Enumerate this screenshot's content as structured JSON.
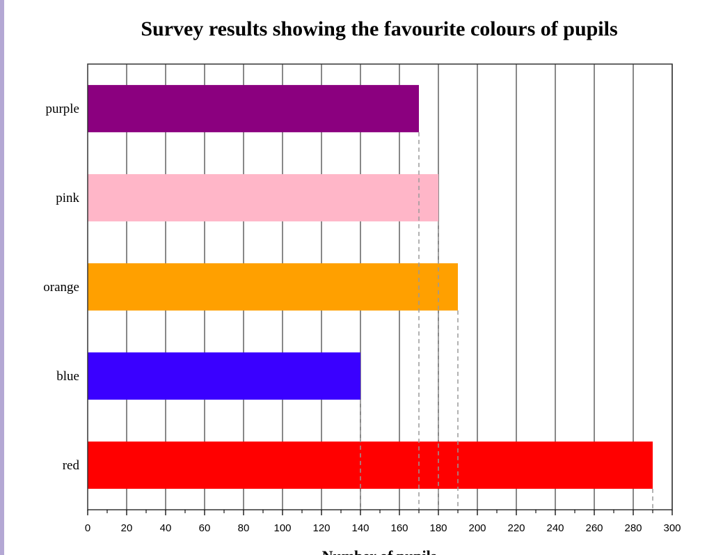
{
  "chart_data": {
    "type": "bar",
    "orientation": "horizontal",
    "title": "Survey results showing the favourite colours of pupils",
    "xlabel": "Number of pupils",
    "ylabel": "",
    "categories": [
      "purple",
      "pink",
      "orange",
      "blue",
      "red"
    ],
    "values": [
      170,
      180,
      190,
      140,
      290
    ],
    "colors": [
      "#8b007f",
      "#ffb6c8",
      "#ffa000",
      "#3a00ff",
      "#ff0000"
    ],
    "xlim": [
      0,
      300
    ],
    "xticks": [
      "0",
      "20",
      "40",
      "60",
      "80",
      "100",
      "120",
      "140",
      "160",
      "180",
      "200",
      "220",
      "240",
      "260",
      "280",
      "300"
    ],
    "grid": true
  }
}
